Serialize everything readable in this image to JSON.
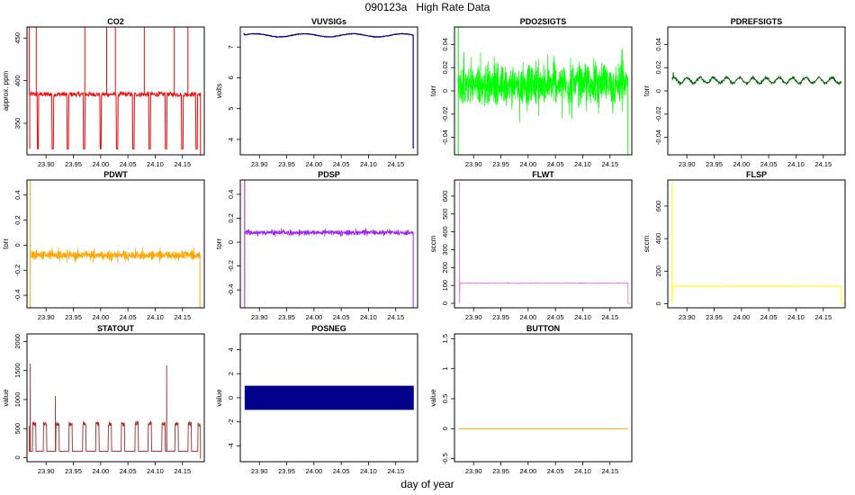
{
  "figure": {
    "title": "090123a   High Rate Data",
    "xlabel": "day of year",
    "xticks": [
      "23.90",
      "23.95",
      "24.00",
      "24.05",
      "24.10",
      "24.15"
    ],
    "xlim": [
      23.865,
      24.19
    ]
  },
  "chart_data": [
    {
      "type": "line",
      "title": "CO2",
      "ylabel": "approx. ppm",
      "color": "#ff0000",
      "ylim": [
        313,
        463
      ],
      "yticks": [
        350,
        400,
        450
      ],
      "pattern": "co2",
      "series": [
        {
          "name": "CO2",
          "x_start": 23.87,
          "x_end": 24.183,
          "baseline": 384,
          "spikes_low": [
            23.885,
            23.912,
            23.94,
            23.97,
            24.0,
            24.03,
            24.06,
            24.09,
            24.12,
            24.15,
            24.176
          ],
          "spikes_high": [
            23.869,
            23.882,
            23.971,
            24.011,
            24.027,
            24.08,
            24.135,
            24.16
          ],
          "low_value": 320
        }
      ]
    },
    {
      "type": "line",
      "title": "VUVSIGs",
      "ylabel": "volts",
      "color": "#00008b",
      "ylim": [
        3.5,
        7.65
      ],
      "yticks": [
        4,
        5,
        6,
        7
      ],
      "pattern": "vuv",
      "series": [
        {
          "name": "VUVSIGs",
          "x_start": 23.873,
          "x_end": 24.182,
          "start": 7.45,
          "end": 3.7
        }
      ]
    },
    {
      "type": "line",
      "title": "PDO2SIGTS",
      "ylabel": "torr",
      "color": "#00ff00",
      "ylim": [
        -0.055,
        0.055
      ],
      "yticks": [
        -0.04,
        -0.02,
        0.0,
        0.02,
        0.04
      ],
      "pattern": "noise",
      "series": [
        {
          "name": "PDO2SIGTS",
          "x_start": 23.872,
          "x_end": 24.183,
          "center": 0.005,
          "amplitude": 0.05
        }
      ]
    },
    {
      "type": "line",
      "title": "PDREFSIGTS",
      "ylabel": "torr",
      "color": "#006400",
      "ylim": [
        -0.055,
        0.055
      ],
      "yticks": [
        -0.04,
        -0.02,
        0.0,
        0.02,
        0.04
      ],
      "pattern": "wave",
      "series": [
        {
          "name": "PDREFSIGTS",
          "x_start": 23.873,
          "x_end": 24.183,
          "center": 0.009,
          "amplitude": 0.004
        }
      ]
    },
    {
      "type": "line",
      "title": "PDWT",
      "ylabel": "torr",
      "color": "#ffa500",
      "ylim": [
        -0.5,
        0.52
      ],
      "yticks": [
        -0.4,
        -0.2,
        0.0,
        0.2,
        0.4
      ],
      "pattern": "noise",
      "series": [
        {
          "name": "PDWT",
          "x_start": 23.871,
          "x_end": 24.182,
          "center": -0.08,
          "amplitude": 0.1
        }
      ]
    },
    {
      "type": "line",
      "title": "PDSP",
      "ylabel": "torr",
      "color": "#a020f0",
      "ylim": [
        -0.55,
        0.52
      ],
      "yticks": [
        -0.4,
        -0.2,
        0.0,
        0.2,
        0.4
      ],
      "pattern": "noise",
      "series": [
        {
          "name": "PDSP",
          "x_start": 23.873,
          "x_end": 24.182,
          "center": 0.08,
          "amplitude": 0.06
        }
      ]
    },
    {
      "type": "line",
      "title": "FLWT",
      "ylabel": "sccm",
      "color": "#ee82ee",
      "ylim": [
        -25,
        690
      ],
      "yticks": [
        0,
        100,
        200,
        300,
        400,
        500,
        600
      ],
      "pattern": "flat",
      "series": [
        {
          "name": "FLWT",
          "x_start": 23.874,
          "x_end": 24.183,
          "level": 113,
          "peak": 680
        }
      ]
    },
    {
      "type": "line",
      "title": "FLSP",
      "ylabel": "sccm",
      "color": "#ffff00",
      "ylim": [
        -25,
        760
      ],
      "yticks": [
        0,
        200,
        400,
        600
      ],
      "pattern": "flat",
      "series": [
        {
          "name": "FLSP",
          "x_start": 23.873,
          "x_end": 24.183,
          "level": 108,
          "peak": 745
        }
      ]
    },
    {
      "type": "line",
      "title": "STATOUT",
      "ylabel": "value",
      "color": "#a52a2a",
      "ylim": [
        -70,
        2130
      ],
      "yticks": [
        0,
        500,
        1000,
        1500,
        2000
      ],
      "pattern": "statout",
      "series": [
        {
          "name": "STATOUT",
          "x_start": 23.869,
          "x_end": 24.183,
          "pulses": [
            23.875,
            23.895,
            23.918,
            23.942,
            23.967,
            23.991,
            24.014,
            24.038,
            24.063,
            24.087,
            24.112,
            24.136,
            24.16,
            24.178
          ],
          "peaks": [
            [
              23.871,
              1620
            ],
            [
              23.917,
              1060
            ],
            [
              24.121,
              1590
            ]
          ]
        }
      ]
    },
    {
      "type": "area",
      "title": "POSNEG",
      "ylabel": "value",
      "color": "#00008b",
      "ylim": [
        -5.3,
        5.3
      ],
      "yticks": [
        -4,
        -2,
        0,
        2,
        4
      ],
      "pattern": "band",
      "series": [
        {
          "name": "POSNEG",
          "x_start": 23.873,
          "x_end": 24.183,
          "low": -1,
          "high": 1
        }
      ]
    },
    {
      "type": "line",
      "title": "BUTTON",
      "ylabel": "value",
      "color": "#ffa500",
      "ylim": [
        -0.55,
        1.58
      ],
      "yticks": [
        -0.5,
        0.0,
        0.5,
        1.0,
        1.5
      ],
      "pattern": "constant",
      "series": [
        {
          "name": "BUTTON",
          "x_start": 23.873,
          "x_end": 24.183,
          "level": 0
        }
      ]
    }
  ]
}
